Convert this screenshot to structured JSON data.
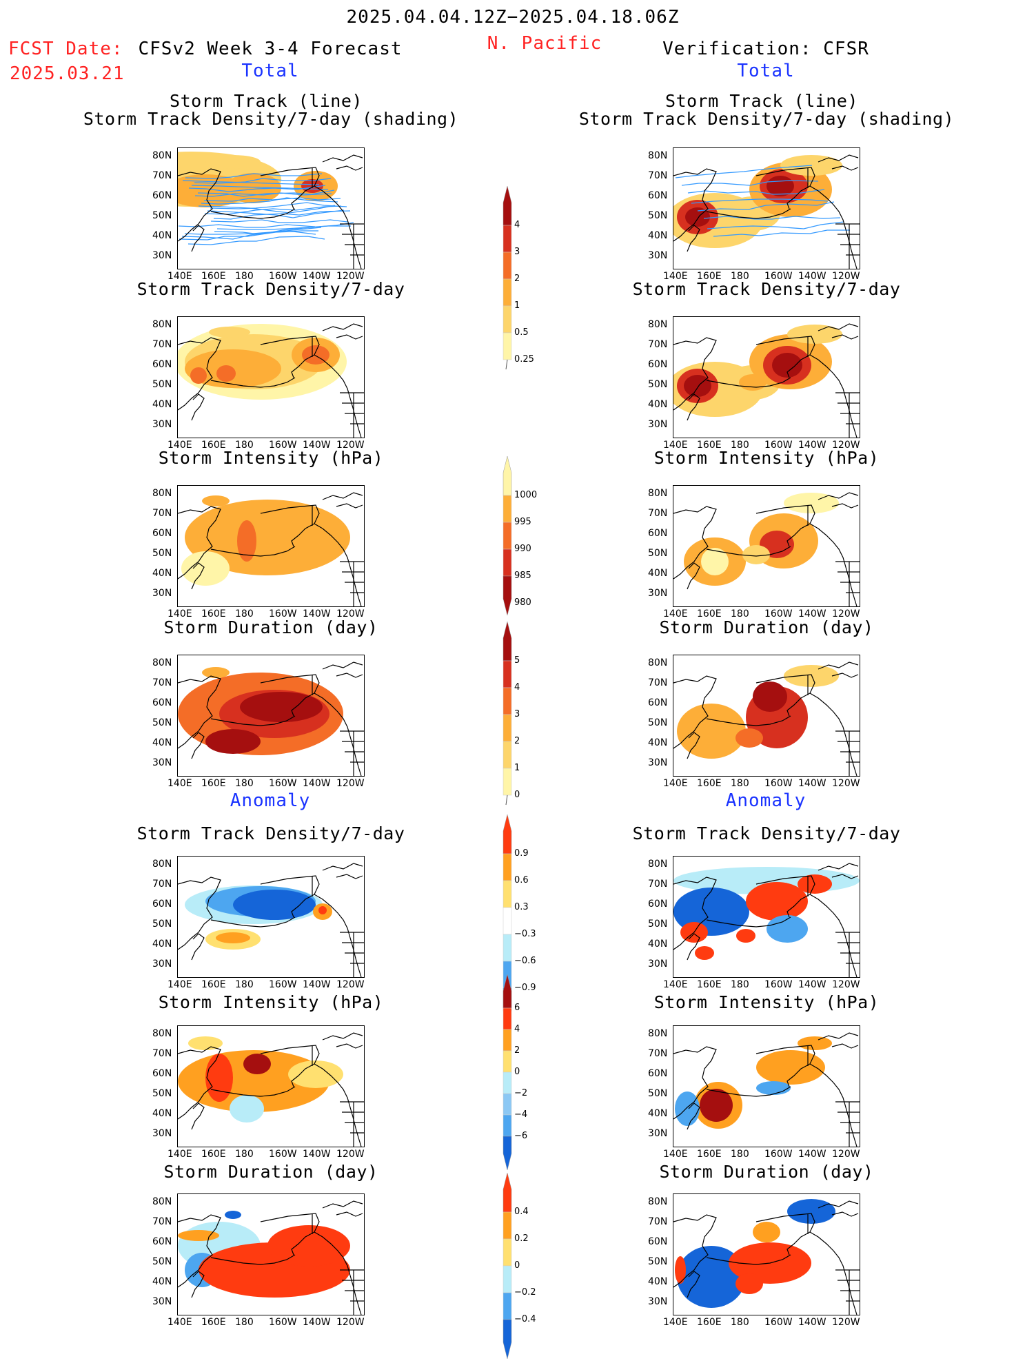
{
  "header": {
    "date_range": "2025.04.04.12Z−2025.04.18.06Z",
    "region": "N. Pacific",
    "fcst_label": "FCST Date:",
    "fcst_date": "2025.03.21",
    "forecast_title": "CFSv2 Week 3-4 Forecast",
    "verification_title": "Verification: CFSR",
    "total_label": "Total",
    "anomaly_label": "Anomaly"
  },
  "panel_titles": {
    "track_line": "Storm Track (line)",
    "track_density_shading": "Storm Track Density/7-day (shading)",
    "track_density": "Storm Track Density/7-day",
    "intensity": "Storm Intensity (hPa)",
    "duration": "Storm Duration (day)"
  },
  "axes": {
    "lat_labels": [
      "80N",
      "70N",
      "60N",
      "50N",
      "40N",
      "30N"
    ],
    "lon_labels": [
      "140E",
      "160E",
      "180",
      "160W",
      "140W",
      "120W"
    ]
  },
  "colorbars": {
    "density": {
      "labels": [
        "4",
        "3",
        "2",
        "1",
        "0.5",
        "0.25"
      ],
      "colors": [
        "#a50f0f",
        "#d7301f",
        "#f46d27",
        "#fdae38",
        "#fdd56b",
        "#fff5a8"
      ]
    },
    "intensity": {
      "labels": [
        "1000",
        "995",
        "990",
        "985",
        "980"
      ],
      "colors": [
        "#fff5a8",
        "#fdae38",
        "#f46d27",
        "#d7301f",
        "#a50f0f"
      ]
    },
    "duration": {
      "labels": [
        "5",
        "4",
        "3",
        "2",
        "1",
        "0"
      ],
      "colors": [
        "#a50f0f",
        "#d7301f",
        "#f46d27",
        "#fdae38",
        "#fdd56b",
        "#fff5a8"
      ]
    },
    "anom_density": {
      "labels": [
        "0.9",
        "0.6",
        "0.3",
        "−0.3",
        "−0.6",
        "−0.9"
      ],
      "colors": [
        "#ff3b10",
        "#ffa020",
        "#ffe070",
        "#ffffff",
        "#b8ecf8",
        "#4da6f0",
        "#1565d8"
      ]
    },
    "anom_intensity": {
      "labels": [
        "6",
        "4",
        "2",
        "0",
        "−2",
        "−4",
        "−6"
      ],
      "colors": [
        "#a50f0f",
        "#ff3b10",
        "#ffa020",
        "#ffe070",
        "#b8ecf8",
        "#8cc8f4",
        "#4da6f0",
        "#1565d8"
      ]
    },
    "anom_duration": {
      "labels": [
        "0.4",
        "0.2",
        "0",
        "−0.2",
        "−0.4"
      ],
      "colors": [
        "#ff3b10",
        "#ffa020",
        "#ffe070",
        "#b8ecf8",
        "#4da6f0",
        "#1565d8"
      ]
    }
  },
  "colors": {
    "forecast_red": "#ff2222",
    "label_blue": "#1a33ff",
    "track_line": "#3399ff"
  }
}
